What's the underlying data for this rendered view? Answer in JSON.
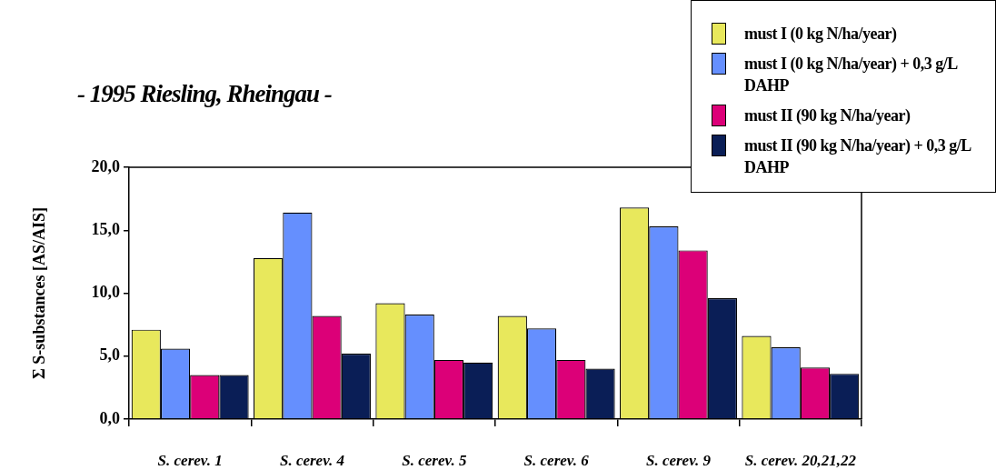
{
  "chart_data": {
    "type": "bar",
    "title": "- 1995 Riesling, Rheingau -",
    "ylabel": "Σ S-substances [AS/AIS]",
    "categories": [
      "S. cerev. 1",
      "S. cerev. 4",
      "S. cerev. 5",
      "S. cerev. 6",
      "S. cerev. 9",
      "S. cerev. 20,21,22"
    ],
    "series": [
      {
        "name": "must I (0 kg N/ha/year)",
        "color": "#e8e85c",
        "values": [
          7.1,
          12.8,
          9.2,
          8.2,
          16.8,
          6.6
        ]
      },
      {
        "name": "must I (0 kg N/ha/year) + 0,3 g/L DAHP",
        "color": "#658ffe",
        "values": [
          5.6,
          16.4,
          8.3,
          7.2,
          15.3,
          5.7
        ]
      },
      {
        "name": "must II (90 kg N/ha/year)",
        "color": "#dc0078",
        "values": [
          3.5,
          8.2,
          4.7,
          4.7,
          13.4,
          4.1
        ]
      },
      {
        "name": "must II (90 kg N/ha/year) + 0,3 g/L DAHP",
        "color": "#0a1e56",
        "values": [
          3.5,
          5.2,
          4.5,
          4.0,
          9.6,
          3.6
        ]
      }
    ],
    "ylim": [
      0,
      20
    ],
    "yticks": [
      {
        "value": 0,
        "label": "0,0"
      },
      {
        "value": 5,
        "label": "5,0"
      },
      {
        "value": 10,
        "label": "10,0"
      },
      {
        "value": 15,
        "label": "15,0"
      },
      {
        "value": 20,
        "label": "20,0"
      }
    ],
    "grid": false,
    "legend": "top right"
  }
}
